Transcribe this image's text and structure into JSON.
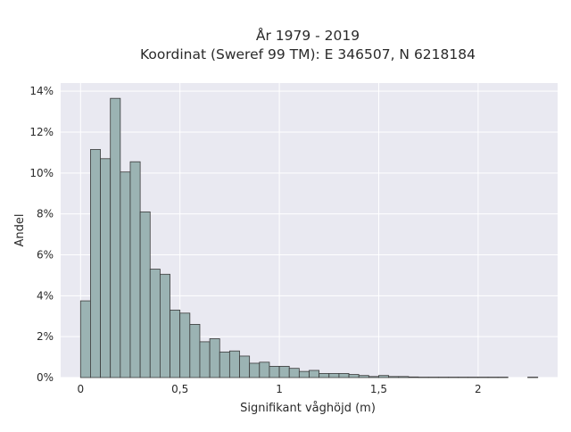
{
  "chart_data": {
    "type": "bar",
    "title_line1": "År 1979 - 2019",
    "title_line2": "Koordinat (Sweref 99 TM): E 346507, N 6218184",
    "xlabel": "Signifikant våghöjd (m)",
    "ylabel": "Andel",
    "xlim": [
      -0.1,
      2.4
    ],
    "ylim": [
      0,
      14.4
    ],
    "x_ticks": [
      {
        "value": 0,
        "label": "0"
      },
      {
        "value": 0.5,
        "label": "0,5"
      },
      {
        "value": 1,
        "label": "1"
      },
      {
        "value": 1.5,
        "label": "1,5"
      },
      {
        "value": 2,
        "label": "2"
      }
    ],
    "y_ticks": [
      {
        "value": 0,
        "label": "0%"
      },
      {
        "value": 2,
        "label": "2%"
      },
      {
        "value": 4,
        "label": "4%"
      },
      {
        "value": 6,
        "label": "6%"
      },
      {
        "value": 8,
        "label": "8%"
      },
      {
        "value": 10,
        "label": "10%"
      },
      {
        "value": 12,
        "label": "12%"
      },
      {
        "value": 14,
        "label": "14%"
      }
    ],
    "bin_width": 0.05,
    "bin_starts": [
      0,
      0.05,
      0.1,
      0.15,
      0.2,
      0.25,
      0.3,
      0.35,
      0.4,
      0.45,
      0.5,
      0.55,
      0.6,
      0.65,
      0.7,
      0.75,
      0.8,
      0.85,
      0.9,
      0.95,
      1.0,
      1.05,
      1.1,
      1.15,
      1.2,
      1.25,
      1.3,
      1.35,
      1.4,
      1.45,
      1.5,
      1.55,
      1.6,
      1.65,
      1.7,
      1.75,
      1.8,
      1.85,
      1.9,
      1.95,
      2.0,
      2.05,
      2.1,
      2.15,
      2.2,
      2.25
    ],
    "values": [
      3.75,
      11.15,
      10.7,
      13.65,
      10.05,
      10.55,
      8.1,
      5.3,
      5.05,
      3.3,
      3.15,
      2.6,
      1.75,
      1.9,
      1.25,
      1.3,
      1.05,
      0.7,
      0.75,
      0.55,
      0.55,
      0.45,
      0.3,
      0.35,
      0.2,
      0.2,
      0.2,
      0.15,
      0.1,
      0.05,
      0.1,
      0.05,
      0.05,
      0.03,
      0.02,
      0.02,
      0.02,
      0.02,
      0.02,
      0.02,
      0.02,
      0.02,
      0.02,
      0.0,
      0.0,
      0.02
    ],
    "bar_color": "#9bb3b3",
    "bar_edge_color": "#3a3a3a",
    "plot_bg_color": "#e9e9f1",
    "grid_color": "#ffffff",
    "grid": true
  }
}
